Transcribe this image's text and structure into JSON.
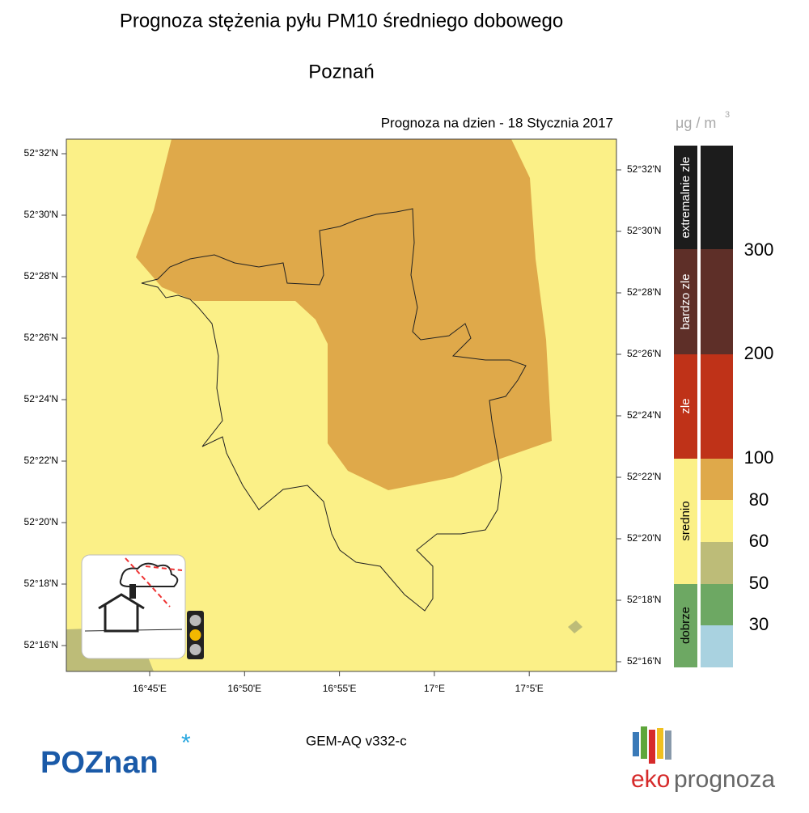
{
  "header": {
    "title": "Prognoza stężenia pyłu PM10 średniego dobowego",
    "city": "Poznań",
    "date_label": "Prognoza na dzien -  18 Stycznia 2017",
    "unit": "μg / m",
    "unit_sup": "3"
  },
  "map": {
    "lat_labels_left": [
      "52°32'N",
      "52°30'N",
      "52°28'N",
      "52°26'N",
      "52°24'N",
      "52°22'N",
      "52°20'N",
      "52°18'N",
      "52°16'N"
    ],
    "lat_labels_right": [
      "52°32'N",
      "52°30'N",
      "52°28'N",
      "52°26'N",
      "52°24'N",
      "52°22'N",
      "52°20'N",
      "52°18'N",
      "52°16'N"
    ],
    "lon_labels": [
      "16°45'E",
      "16°50'E",
      "16°55'E",
      "17°E",
      "17°5'E"
    ]
  },
  "legend": {
    "categories": [
      "extremalnie zle",
      "bardzo zle",
      "zle",
      "srednio",
      "dobrze"
    ],
    "levels": [
      "300",
      "200",
      "100",
      "80",
      "60",
      "50",
      "30"
    ]
  },
  "footer": {
    "model": "GEM-AQ v332-c",
    "logo_left": "POZnan",
    "logo_right_a": "eko",
    "logo_right_b": "prognoza"
  }
}
